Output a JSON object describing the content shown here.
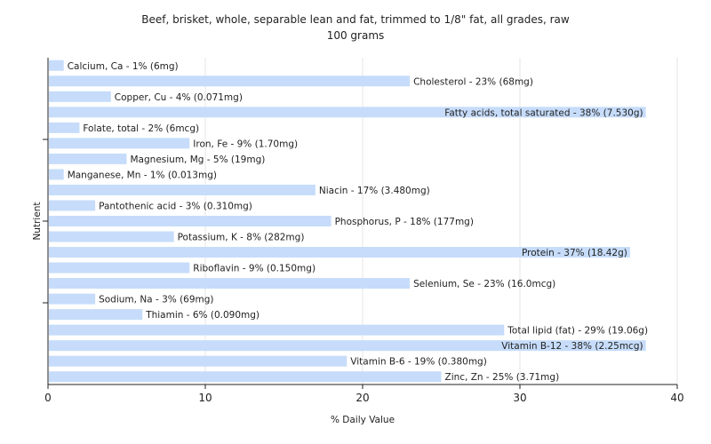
{
  "chart_data": {
    "type": "bar",
    "orientation": "horizontal",
    "title": "Beef, brisket, whole, separable lean and fat, trimmed to 1/8\" fat, all grades, raw",
    "subtitle": "100 grams",
    "xlabel": "% Daily Value",
    "ylabel": "Nutrient",
    "xlim": [
      0,
      40
    ],
    "xticks": [
      0,
      10,
      20,
      30,
      40
    ],
    "grid": true,
    "bar_color": "#c6dcfa",
    "categories": [
      "Calcium, Ca",
      "Cholesterol",
      "Copper, Cu",
      "Fatty acids, total saturated",
      "Folate, total",
      "Iron, Fe",
      "Magnesium, Mg",
      "Manganese, Mn",
      "Niacin",
      "Pantothenic acid",
      "Phosphorus, P",
      "Potassium, K",
      "Protein",
      "Riboflavin",
      "Selenium, Se",
      "Sodium, Na",
      "Thiamin",
      "Total lipid (fat)",
      "Vitamin B-12",
      "Vitamin B-6",
      "Zinc, Zn"
    ],
    "values": [
      1,
      23,
      4,
      38,
      2,
      9,
      5,
      1,
      17,
      3,
      18,
      8,
      37,
      9,
      23,
      3,
      6,
      29,
      38,
      19,
      25
    ],
    "labels": [
      "Calcium, Ca - 1% (6mg)",
      "Cholesterol - 23% (68mg)",
      "Copper, Cu - 4% (0.071mg)",
      "Fatty acids, total saturated - 38% (7.530g)",
      "Folate, total - 2% (6mcg)",
      "Iron, Fe - 9% (1.70mg)",
      "Magnesium, Mg - 5% (19mg)",
      "Manganese, Mn - 1% (0.013mg)",
      "Niacin - 17% (3.480mg)",
      "Pantothenic acid - 3% (0.310mg)",
      "Phosphorus, P - 18% (177mg)",
      "Potassium, K - 8% (282mg)",
      "Protein - 37% (18.42g)",
      "Riboflavin - 9% (0.150mg)",
      "Selenium, Se - 23% (16.0mcg)",
      "Sodium, Na - 3% (69mg)",
      "Thiamin - 6% (0.090mg)",
      "Total lipid (fat) - 29% (19.06g)",
      "Vitamin B-12 - 38% (2.25mcg)",
      "Vitamin B-6 - 19% (0.380mg)",
      "Zinc, Zn - 25% (3.71mg)"
    ]
  }
}
